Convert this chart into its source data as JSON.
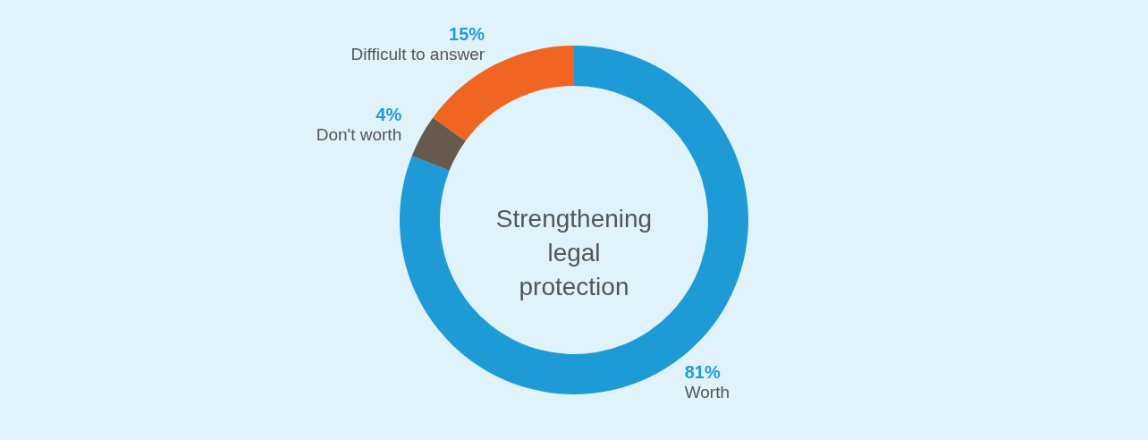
{
  "chart_data": {
    "type": "donut",
    "title": "Strengthening legal protection",
    "categories": [
      "Worth",
      "Don't worth",
      "Difficult to answer"
    ],
    "values": [
      81,
      4,
      15
    ],
    "colors": [
      "#1e9bd7",
      "#665a4e",
      "#f06522"
    ],
    "value_labels": [
      "81%",
      "4%",
      "15%"
    ]
  }
}
